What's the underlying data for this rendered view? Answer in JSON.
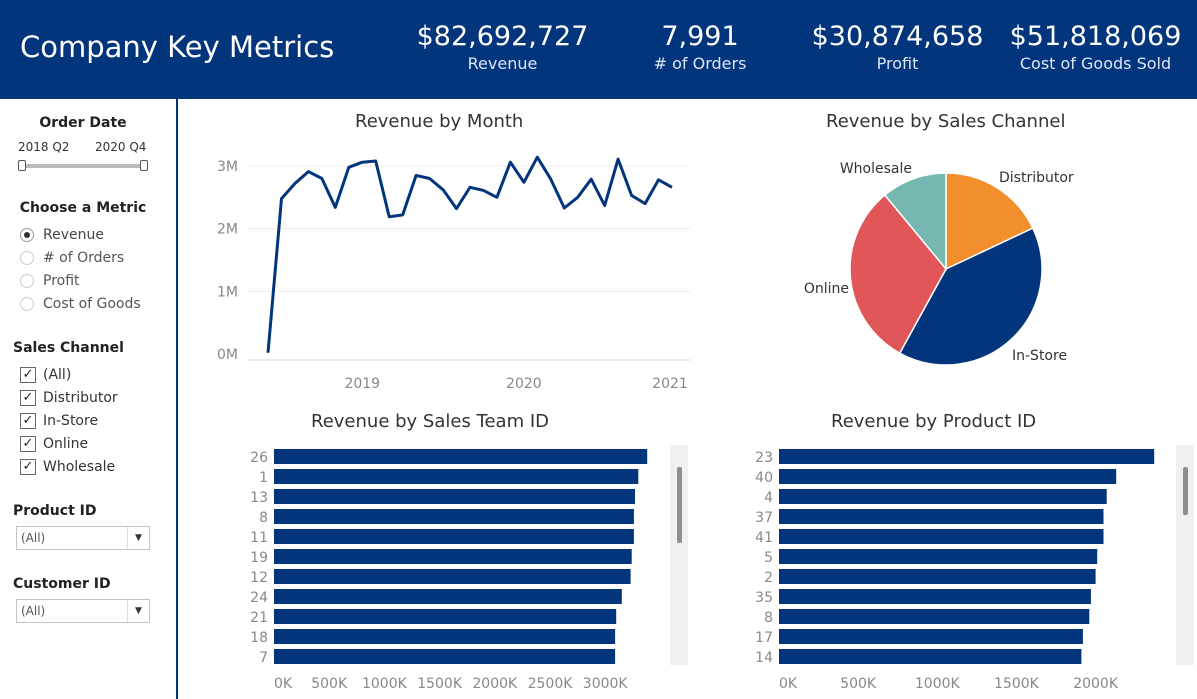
{
  "header": {
    "title": "Company Key Metrics",
    "kpis": [
      {
        "value": "$82,692,727",
        "label": "Revenue"
      },
      {
        "value": "7,991",
        "label": "# of Orders"
      },
      {
        "value": "$30,874,658",
        "label": "Profit"
      },
      {
        "value": "$51,818,069",
        "label": "Cost of Goods Sold"
      }
    ]
  },
  "colors": {
    "brand": "#02357b",
    "distributor": "#f28e2b",
    "in_store": "#02357b",
    "online": "#e15759",
    "wholesale": "#76b7b2"
  },
  "sidebar": {
    "order_date": {
      "title": "Order Date",
      "start": "2018 Q2",
      "end": "2020 Q4"
    },
    "metric": {
      "title": "Choose a Metric",
      "options": [
        {
          "label": "Revenue",
          "selected": true
        },
        {
          "label": "# of Orders",
          "selected": false
        },
        {
          "label": "Profit",
          "selected": false
        },
        {
          "label": "Cost of Goods",
          "selected": false
        }
      ]
    },
    "sales_channel": {
      "title": "Sales Channel",
      "options": [
        {
          "label": "(All)",
          "checked": true
        },
        {
          "label": "Distributor",
          "checked": true
        },
        {
          "label": "In-Store",
          "checked": true
        },
        {
          "label": "Online",
          "checked": true
        },
        {
          "label": "Wholesale",
          "checked": true
        }
      ]
    },
    "product_id": {
      "title": "Product ID",
      "value": "(All)"
    },
    "customer_id": {
      "title": "Customer ID",
      "value": "(All)"
    }
  },
  "chart_data": [
    {
      "type": "line",
      "title": "Revenue by Month",
      "ylabel": "",
      "xlabel": "",
      "x_ticks": [
        "2019",
        "2020",
        "2021"
      ],
      "y_ticks": [
        "0M",
        "1M",
        "2M",
        "3M"
      ],
      "ylim": [
        0,
        3200000
      ],
      "x": [
        "2018-06",
        "2018-07",
        "2018-08",
        "2018-09",
        "2018-10",
        "2018-11",
        "2018-12",
        "2019-01",
        "2019-02",
        "2019-03",
        "2019-04",
        "2019-05",
        "2019-06",
        "2019-07",
        "2019-08",
        "2019-09",
        "2019-10",
        "2019-11",
        "2019-12",
        "2020-01",
        "2020-02",
        "2020-03",
        "2020-04",
        "2020-05",
        "2020-06",
        "2020-07",
        "2020-08",
        "2020-09",
        "2020-10",
        "2020-11",
        "2020-12"
      ],
      "values": [
        20000,
        2480000,
        2720000,
        2910000,
        2800000,
        2340000,
        2980000,
        3060000,
        3080000,
        2190000,
        2220000,
        2850000,
        2800000,
        2620000,
        2320000,
        2660000,
        2610000,
        2500000,
        3060000,
        2740000,
        3140000,
        2790000,
        2330000,
        2500000,
        2790000,
        2370000,
        3110000,
        2530000,
        2400000,
        2780000,
        2660000
      ],
      "series": [
        {
          "values_ref": "values"
        }
      ]
    },
    {
      "type": "pie",
      "title": "Revenue by Sales Channel",
      "slices": [
        {
          "label": "Distributor",
          "value": 18,
          "color": "#f28e2b"
        },
        {
          "label": "In-Store",
          "value": 40,
          "color": "#02357b"
        },
        {
          "label": "Online",
          "value": 31,
          "color": "#e15759"
        },
        {
          "label": "Wholesale",
          "value": 11,
          "color": "#76b7b2"
        }
      ]
    },
    {
      "type": "bar",
      "title": "Revenue by Sales Team ID",
      "orientation": "horizontal",
      "categories": [
        "26",
        "1",
        "13",
        "8",
        "11",
        "19",
        "12",
        "24",
        "21",
        "18",
        "7"
      ],
      "values": [
        3380000,
        3300000,
        3270000,
        3260000,
        3260000,
        3240000,
        3230000,
        3150000,
        3100000,
        3090000,
        3090000
      ],
      "x_ticks": [
        "0K",
        "500K",
        "1000K",
        "1500K",
        "2000K",
        "2500K",
        "3000K"
      ],
      "xlim": [
        0,
        3500000
      ],
      "color": "#02357b"
    },
    {
      "type": "bar",
      "title": "Revenue by Product ID",
      "orientation": "horizontal",
      "categories": [
        "23",
        "40",
        "4",
        "37",
        "41",
        "5",
        "2",
        "35",
        "8",
        "17",
        "14"
      ],
      "values": [
        2370000,
        2130000,
        2070000,
        2050000,
        2050000,
        2010000,
        2000000,
        1970000,
        1960000,
        1920000,
        1910000
      ],
      "x_ticks": [
        "0K",
        "500K",
        "1000K",
        "1500K",
        "2000K"
      ],
      "xlim": [
        0,
        2500000
      ],
      "color": "#02357b"
    }
  ]
}
